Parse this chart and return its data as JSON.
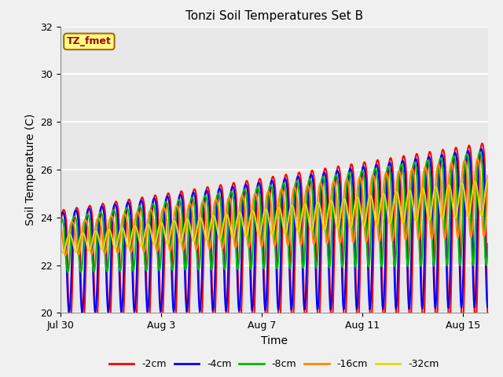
{
  "title": "Tonzi Soil Temperatures Set B",
  "xlabel": "Time",
  "ylabel": "Soil Temperature (C)",
  "ylim": [
    20,
    32
  ],
  "xlim": [
    0,
    17
  ],
  "xtick_labels": [
    "Jul 30",
    "Aug 3",
    "Aug 7",
    "Aug 11",
    "Aug 15"
  ],
  "xtick_positions": [
    0,
    4,
    8,
    12,
    16
  ],
  "ytick_positions": [
    20,
    22,
    24,
    26,
    28,
    30,
    32
  ],
  "line_colors": [
    "#ff0000",
    "#0000ff",
    "#00bb00",
    "#ff8800",
    "#dddd00"
  ],
  "line_labels": [
    "-2cm",
    "-4cm",
    "-8cm",
    "-16cm",
    "-32cm"
  ],
  "annotation_text": "TZ_fmet",
  "annotation_bg": "#ffff88",
  "annotation_fg": "#aa0000",
  "annotation_edge": "#aa6600",
  "plot_bg": "#e8e8e8",
  "fig_bg": "#f0f0f0",
  "grid_color": "#ffffff",
  "n_days": 17,
  "half_period": 0.5
}
